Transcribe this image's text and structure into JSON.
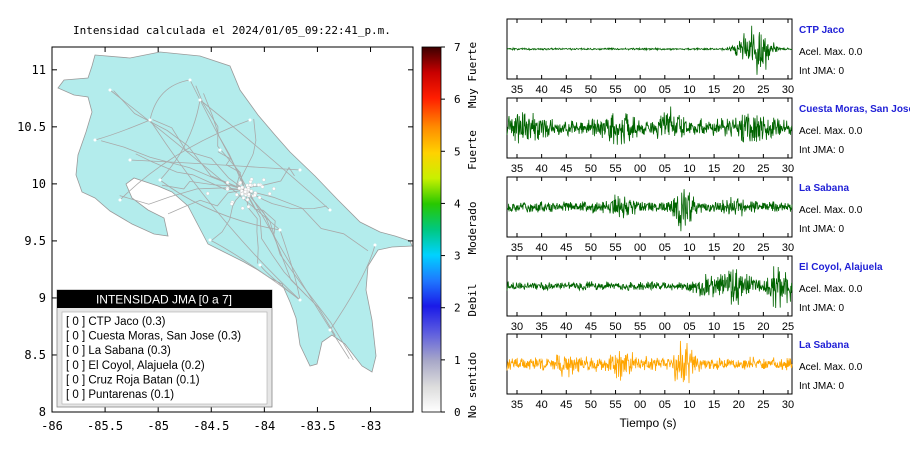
{
  "map": {
    "title": "Intensidad calculada el 2024/01/05_09:22:41_p.m.",
    "x_ticks": [
      "-86",
      "-85.5",
      "-85",
      "-84.5",
      "-84",
      "-83.5",
      "-83"
    ],
    "y_ticks": [
      "11",
      "10.5",
      "10",
      "9.5",
      "9",
      "8.5",
      "8"
    ],
    "land_color": "#b3ecec",
    "road_color": "#a9a9a9"
  },
  "legend": {
    "title": "INTENSIDAD JMA [0 a 7]",
    "items": [
      "[ 0 ]  CTP Jaco (0.3)",
      "[ 0 ]  Cuesta Moras, San Jose (0.3)",
      "[ 0 ]  La Sabana (0.3)",
      "[ 0 ]  El Coyol, Alajuela (0.2)",
      "[ 0 ]  Cruz Roja Batan (0.1)",
      "[ 0 ]  Puntarenas (0.1)"
    ]
  },
  "colorbar": {
    "ticks": [
      "0",
      "1",
      "2",
      "3",
      "4",
      "5",
      "6",
      "7"
    ],
    "classes": [
      "No sentido",
      "Debil",
      "Moderado",
      "Fuerte",
      "Muy Fuerte"
    ]
  },
  "waveforms": {
    "xlabel": "Tiempo (s)",
    "panels": [
      {
        "station": "CTP Jaco",
        "accel": "Acel. Max. 0.0",
        "jma": "Int JMA: 0",
        "ticks": [
          "35",
          "40",
          "45",
          "50",
          "55",
          "00",
          "05",
          "10",
          "15",
          "20",
          "25",
          "30"
        ],
        "color": "#006400"
      },
      {
        "station": "Cuesta Moras, San Jose",
        "accel": "Acel. Max. 0.0",
        "jma": "Int JMA: 0",
        "ticks": [
          "35",
          "40",
          "45",
          "50",
          "55",
          "00",
          "05",
          "10",
          "15",
          "20",
          "25",
          "30"
        ],
        "color": "#006400"
      },
      {
        "station": "La Sabana",
        "accel": "Acel. Max. 0.0",
        "jma": "Int JMA: 0",
        "ticks": [
          "35",
          "40",
          "45",
          "50",
          "55",
          "00",
          "05",
          "10",
          "15",
          "20",
          "25",
          "30"
        ],
        "color": "#006400"
      },
      {
        "station": "El Coyol, Alajuela",
        "accel": "Acel. Max. 0.0",
        "jma": "Int JMA: 0",
        "ticks": [
          "30",
          "35",
          "40",
          "45",
          "50",
          "55",
          "00",
          "05",
          "10",
          "15",
          "20",
          "25"
        ],
        "color": "#006400"
      },
      {
        "station": "La Sabana",
        "accel": "Acel. Max. 0.0",
        "jma": "Int JMA: 0",
        "ticks": [
          "35",
          "40",
          "45",
          "50",
          "55",
          "00",
          "05",
          "10",
          "15",
          "20",
          "25",
          "30"
        ],
        "color": "#ffa500"
      }
    ]
  },
  "chart_data": [
    {
      "type": "heatmap",
      "title": "Intensidad calculada el 2024/01/05_09:22:41_p.m.",
      "xlim": [
        -86,
        -82.6
      ],
      "ylim": [
        8,
        11.2
      ],
      "x_ticks": [
        -86,
        -85.5,
        -85,
        -84.5,
        -84,
        -83.5,
        -83
      ],
      "y_ticks": [
        8,
        8.5,
        9,
        9.5,
        10,
        10.5,
        11
      ],
      "colorbar_range": [
        0,
        7
      ]
    },
    {
      "type": "line",
      "xlabel": "Tiempo (s)",
      "series": [
        {
          "name": "CTP Jaco",
          "acel_max": 0.0,
          "int_jma": 0
        },
        {
          "name": "Cuesta Moras, San Jose",
          "acel_max": 0.0,
          "int_jma": 0
        },
        {
          "name": "La Sabana",
          "acel_max": 0.0,
          "int_jma": 0
        },
        {
          "name": "El Coyol, Alajuela",
          "acel_max": 0.0,
          "int_jma": 0
        },
        {
          "name": "La Sabana",
          "acel_max": 0.0,
          "int_jma": 0
        }
      ]
    }
  ]
}
